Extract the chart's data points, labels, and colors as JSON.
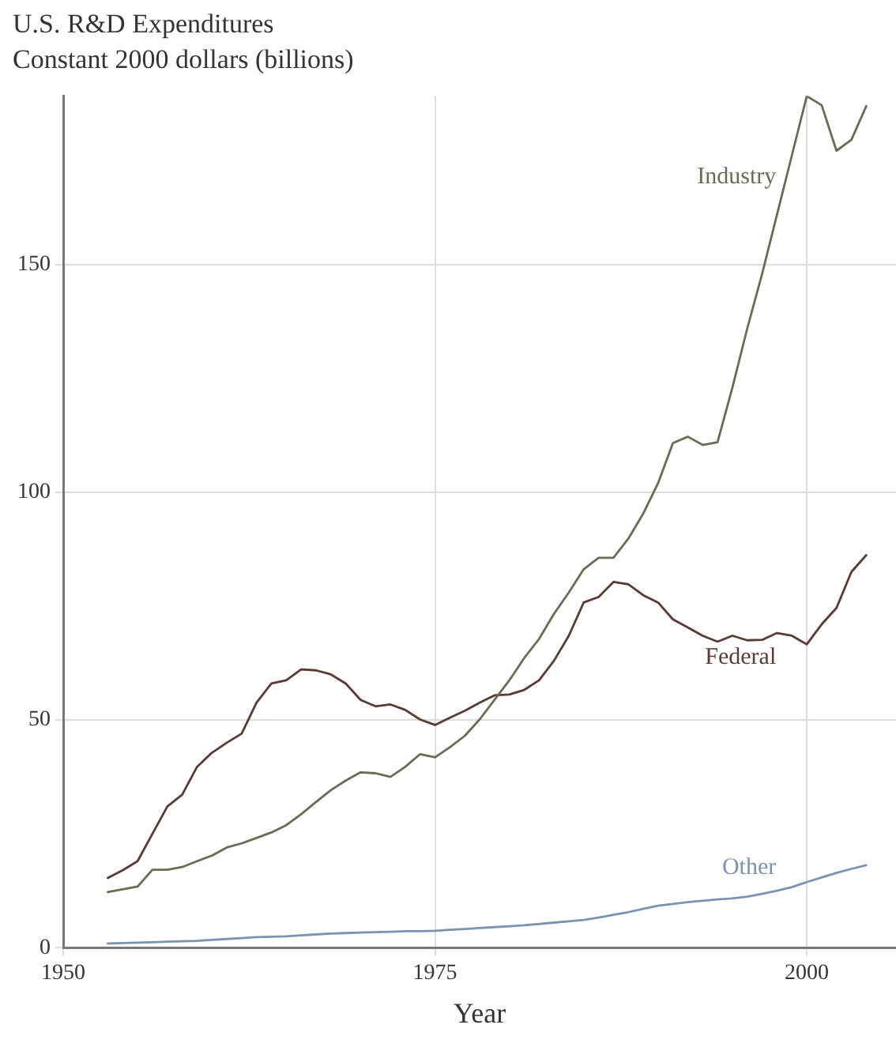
{
  "chart_data": {
    "type": "line",
    "title": "U.S. R&D Expenditures",
    "subtitle": "Constant 2000 dollars (billions)",
    "xlabel": "Year",
    "x": [
      1953,
      1954,
      1955,
      1956,
      1957,
      1958,
      1959,
      1960,
      1961,
      1962,
      1963,
      1964,
      1965,
      1966,
      1967,
      1968,
      1969,
      1970,
      1971,
      1972,
      1973,
      1974,
      1975,
      1976,
      1977,
      1978,
      1979,
      1980,
      1981,
      1982,
      1983,
      1984,
      1985,
      1986,
      1987,
      1988,
      1989,
      1990,
      1991,
      1992,
      1993,
      1994,
      1995,
      1996,
      1997,
      1998,
      1999,
      2000,
      2001,
      2002,
      2003,
      2004
    ],
    "series": [
      {
        "name": "Industry",
        "color": "#6b6b55",
        "values": [
          12.2,
          12.8,
          13.4,
          17.1,
          17.1,
          17.7,
          19,
          20.2,
          22,
          22.9,
          24.1,
          25.3,
          26.9,
          29.3,
          32,
          34.6,
          36.7,
          38.5,
          38.3,
          37.5,
          39.7,
          42.5,
          41.8,
          44,
          46.5,
          50.1,
          54.4,
          58.7,
          63.6,
          67.8,
          73.3,
          78,
          83.1,
          85.6,
          85.6,
          89.8,
          95.3,
          102,
          110.8,
          112.2,
          110.4,
          111,
          123,
          136,
          148,
          161,
          174,
          187,
          185,
          175,
          177.4,
          184.8
        ]
      },
      {
        "name": "Federal",
        "color": "#5a3a35",
        "values": [
          15.3,
          17,
          19,
          25,
          31,
          33.6,
          39.7,
          42.8,
          45,
          47,
          53.8,
          58,
          58.7,
          61.1,
          60.9,
          60,
          58,
          54.4,
          53,
          53.4,
          52.2,
          50.1,
          48.9,
          50.5,
          52,
          53.8,
          55.4,
          55.6,
          56.6,
          58.7,
          63,
          68.5,
          75.8,
          77,
          80.3,
          79.8,
          77.4,
          75.8,
          72.1,
          70.3,
          68.5,
          67.2,
          68.5,
          67.5,
          67.6,
          69.1,
          68.5,
          66.6,
          71,
          74.6,
          82.5,
          86.2
        ]
      },
      {
        "name": "Other",
        "color": "#7a93b0",
        "values": [
          0.9,
          1,
          1.1,
          1.2,
          1.3,
          1.4,
          1.5,
          1.7,
          1.9,
          2.1,
          2.3,
          2.4,
          2.5,
          2.7,
          2.9,
          3.1,
          3.2,
          3.3,
          3.4,
          3.5,
          3.6,
          3.6,
          3.7,
          3.9,
          4.1,
          4.3,
          4.5,
          4.7,
          4.9,
          5.2,
          5.5,
          5.8,
          6.1,
          6.6,
          7.2,
          7.8,
          8.5,
          9.2,
          9.6,
          10,
          10.3,
          10.6,
          10.8,
          11.2,
          11.8,
          12.5,
          13.3,
          14.4,
          15.4,
          16.4,
          17.3,
          18.1
        ]
      }
    ],
    "xlim": [
      1950,
      2006
    ],
    "xticks": [
      1950,
      1975,
      2000
    ],
    "ylim": [
      0,
      187
    ],
    "yticks": [
      0,
      50,
      100,
      150
    ],
    "grid": true,
    "legend": false,
    "marker": "none",
    "line_style": "solid"
  }
}
